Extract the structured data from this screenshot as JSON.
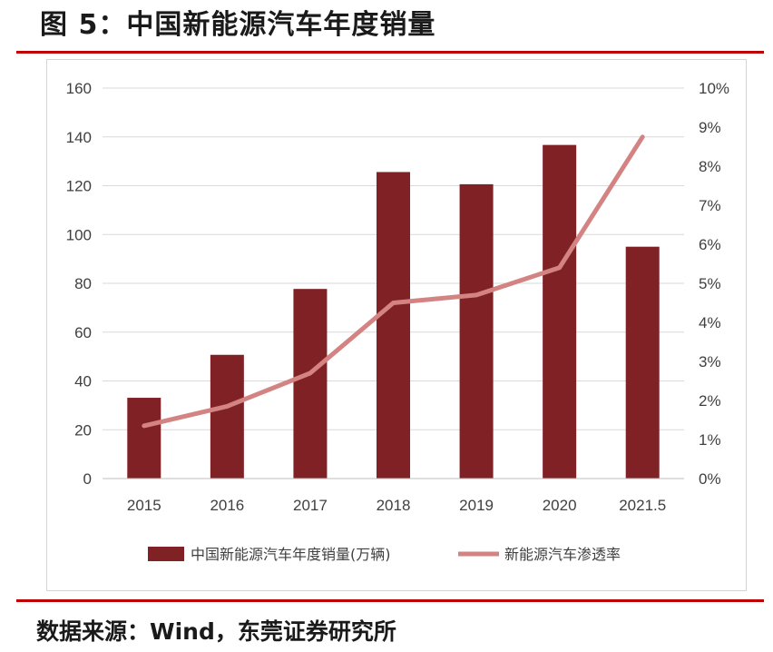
{
  "figure": {
    "title": "图 5：中国新能源汽车年度销量",
    "source": "数据来源：Wind，东莞证券研究所"
  },
  "colors": {
    "bar": "#7f2125",
    "line": "#d48383",
    "gridline": "#d9d9d9",
    "rule": "#c00000"
  },
  "chart_data": {
    "type": "bar",
    "title": "中国新能源汽车年度销量",
    "categories": [
      "2015",
      "2016",
      "2017",
      "2018",
      "2019",
      "2020",
      "2021.5"
    ],
    "series": [
      {
        "name": "中国新能源汽车年度销量(万辆)",
        "type": "bar",
        "axis": "left",
        "values": [
          33.1,
          50.7,
          77.7,
          125.6,
          120.6,
          136.7,
          95.0
        ]
      },
      {
        "name": "新能源汽车渗透率",
        "type": "line",
        "axis": "right",
        "values": [
          1.35,
          1.85,
          2.7,
          4.5,
          4.7,
          5.4,
          8.75
        ]
      }
    ],
    "left_axis": {
      "ylim": [
        0,
        160
      ],
      "ticks": [
        0,
        20,
        40,
        60,
        80,
        100,
        120,
        140,
        160
      ],
      "tick_labels": [
        "0",
        "20",
        "40",
        "60",
        "80",
        "100",
        "120",
        "140",
        "160"
      ]
    },
    "right_axis": {
      "ylim": [
        0,
        10
      ],
      "ticks": [
        0,
        1,
        2,
        3,
        4,
        5,
        6,
        7,
        8,
        9,
        10
      ],
      "tick_labels": [
        "0%",
        "1%",
        "2%",
        "3%",
        "4%",
        "5%",
        "6%",
        "7%",
        "8%",
        "9%",
        "10%"
      ]
    },
    "grid": true,
    "legend": "bottom"
  }
}
